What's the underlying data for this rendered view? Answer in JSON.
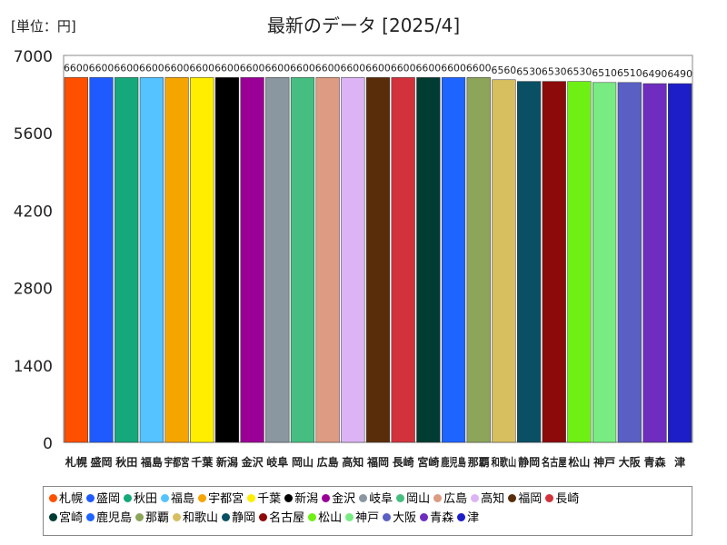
{
  "chart_data": {
    "type": "bar",
    "title": "最新のデータ [2025/4]",
    "unit_label": "[単位：円]",
    "xlabel": "",
    "ylabel": "",
    "ylim": [
      0,
      7000
    ],
    "yticks": [
      0,
      1400,
      2800,
      4200,
      5600,
      7000
    ],
    "grid": false,
    "legend_position": "bottom",
    "categories": [
      "札幌",
      "盛岡",
      "秋田",
      "福島",
      "宇都宮",
      "千葉",
      "新潟",
      "金沢",
      "岐阜",
      "岡山",
      "広島",
      "高知",
      "福岡",
      "長崎",
      "宮崎",
      "鹿児島",
      "那覇",
      "和歌山",
      "静岡",
      "名古屋",
      "松山",
      "神戸",
      "大阪",
      "青森",
      "津"
    ],
    "values": [
      6600,
      6600,
      6600,
      6600,
      6600,
      6600,
      6600,
      6600,
      6600,
      6600,
      6600,
      6600,
      6600,
      6600,
      6600,
      6600,
      6600,
      6560,
      6530,
      6530,
      6530,
      6510,
      6510,
      6490,
      6490
    ],
    "value_labels": [
      "6600",
      "6600",
      "6600",
      "6600",
      "6600",
      "6600",
      "6600",
      "6600",
      "6600",
      "6600",
      "6600",
      "6600",
      "6600",
      "6600",
      "6600",
      "6600",
      "6600",
      "6560",
      "6530",
      "6530",
      "6530",
      "6510",
      "6510",
      "6490",
      "6490"
    ],
    "colors": [
      "#ff5000",
      "#1e5aff",
      "#14a87a",
      "#55c3ff",
      "#f5a500",
      "#ffee00",
      "#000000",
      "#9a0096",
      "#8a96a0",
      "#46be82",
      "#dc9b82",
      "#dcb4f5",
      "#5a2d0a",
      "#d2323c",
      "#003c32",
      "#1e64ff",
      "#8ca55a",
      "#d7be5f",
      "#0a5064",
      "#8c0a0a",
      "#6ef014",
      "#78eb82",
      "#5a5fc3",
      "#6e2dbe",
      "#1e1ec8"
    ]
  }
}
